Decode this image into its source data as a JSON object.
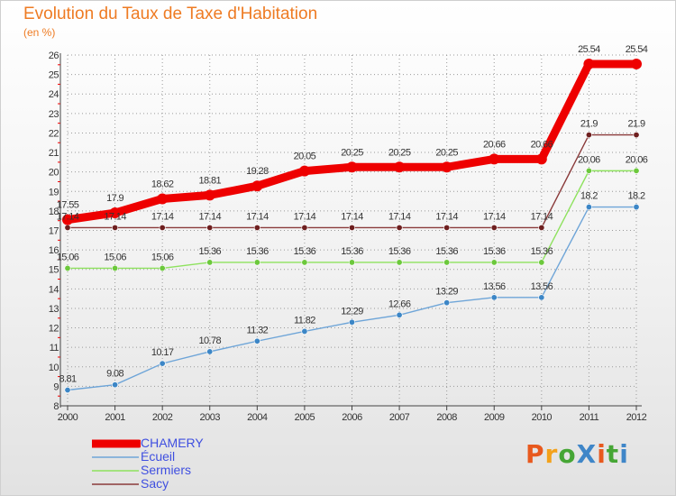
{
  "title": "Evolution du Taux de Taxe d'Habitation",
  "unit_label": "(en %)",
  "brand": "ProXiti",
  "colors": {
    "title": "#ee7b23",
    "grid": "#9a9a9a",
    "axis": "#444444",
    "legend_text": "#3f4fe0",
    "brand": [
      "#e8591e",
      "#f3a21b",
      "#46a635",
      "#3f86c8",
      "#e8591e",
      "#46a635",
      "#3f86c8"
    ]
  },
  "chart_data": {
    "type": "line",
    "title": "Evolution du Taux de Taxe d'Habitation",
    "xlabel": "",
    "ylabel": "(en %)",
    "x": [
      2000,
      2001,
      2002,
      2003,
      2004,
      2005,
      2006,
      2007,
      2008,
      2009,
      2010,
      2011,
      2012
    ],
    "ylim": [
      8,
      26
    ],
    "yticks": [
      8,
      9,
      10,
      11,
      12,
      13,
      14,
      15,
      16,
      17,
      18,
      19,
      20,
      21,
      22,
      23,
      24,
      25,
      26
    ],
    "grid": true,
    "legend_position": "bottom-left",
    "series": [
      {
        "name": "CHAMERY",
        "color": "#ee0000",
        "emphasis": true,
        "values": [
          17.55,
          17.9,
          18.62,
          18.81,
          19.28,
          20.05,
          20.25,
          20.25,
          20.25,
          20.66,
          20.66,
          25.54,
          25.54
        ],
        "labels": [
          "17.55",
          "17.9",
          "18.62",
          "18.81",
          "19.28",
          "20.05",
          "20.25",
          "20.25",
          "20.25",
          "20.66",
          "20.66",
          "25.54",
          "25.54"
        ]
      },
      {
        "name": "Écueil",
        "color": "#6ea5d8",
        "marker": "#3c86c6",
        "values": [
          8.81,
          9.08,
          10.17,
          10.78,
          11.32,
          11.82,
          12.29,
          12.66,
          13.29,
          13.56,
          13.56,
          18.2,
          18.2
        ],
        "labels": [
          "8.81",
          "9.08",
          "10.17",
          "10.78",
          "11.32",
          "11.82",
          "12.29",
          "12.66",
          "13.29",
          "13.56",
          "13.56",
          "18.2",
          "18.2"
        ]
      },
      {
        "name": "Sermiers",
        "color": "#8ee25e",
        "marker": "#6cc83c",
        "values": [
          15.06,
          15.06,
          15.06,
          15.36,
          15.36,
          15.36,
          15.36,
          15.36,
          15.36,
          15.36,
          15.36,
          20.06,
          20.06
        ],
        "labels": [
          "15.06",
          "15.06",
          "15.06",
          "15.36",
          "15.36",
          "15.36",
          "15.36",
          "15.36",
          "15.36",
          "15.36",
          "15.36",
          "20.06",
          "20.06"
        ]
      },
      {
        "name": "Sacy",
        "color": "#8a3a3a",
        "marker": "#6e1f1f",
        "values": [
          17.14,
          17.14,
          17.14,
          17.14,
          17.14,
          17.14,
          17.14,
          17.14,
          17.14,
          17.14,
          17.14,
          21.9,
          21.9
        ],
        "labels": [
          "17.14",
          "17.14",
          "17.14",
          "17.14",
          "17.14",
          "17.14",
          "17.14",
          "17.14",
          "17.14",
          "17.14",
          "17.14",
          "21.9",
          "21.9"
        ]
      }
    ]
  }
}
